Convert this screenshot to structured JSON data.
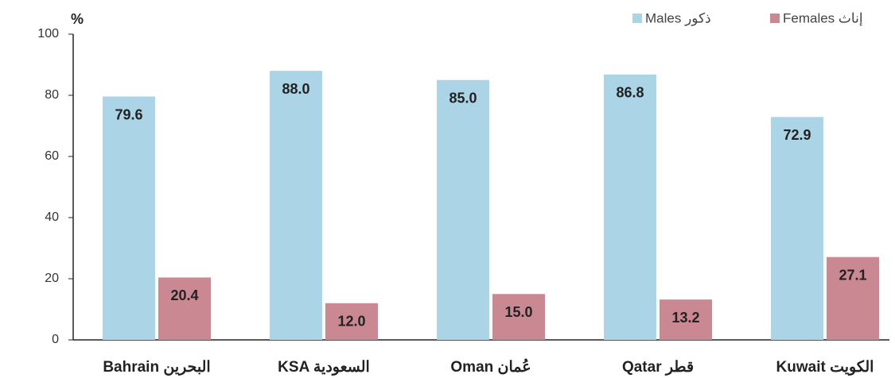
{
  "chart_data": {
    "type": "bar",
    "ylabel": "%",
    "categories": [
      "Bahrain البحرين",
      "KSA السعودية",
      "Oman عُمان",
      "Qatar قطر",
      "Kuwait الكويت"
    ],
    "series": [
      {
        "name": "Males ذكور",
        "color": "#abd4e6",
        "values": [
          79.6,
          88.0,
          85.0,
          86.8,
          72.9
        ],
        "value_labels": [
          "79.6",
          "88.0",
          "85.0",
          "86.8",
          "72.9"
        ]
      },
      {
        "name": "Females إناث",
        "color": "#c98892",
        "values": [
          20.4,
          12.0,
          15.0,
          13.2,
          27.1
        ],
        "value_labels": [
          "20.4",
          "12.0",
          "15.0",
          "13.2",
          "27.1"
        ]
      }
    ],
    "ylim": [
      0,
      100
    ],
    "yticks": [
      0,
      20,
      40,
      60,
      80,
      100
    ],
    "grid": false,
    "legend": "top-right"
  }
}
